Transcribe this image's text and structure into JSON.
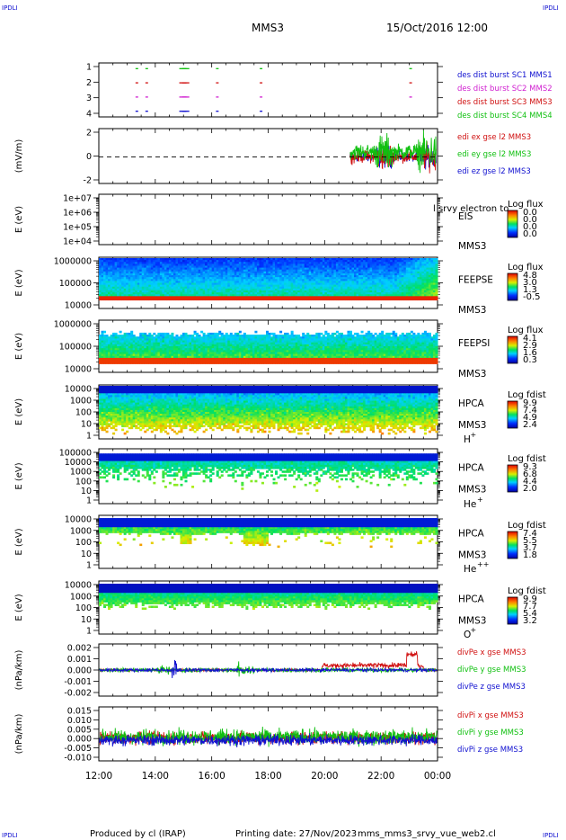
{
  "corner_labels": {
    "top_left": "IPDLI",
    "top_right": "IPDLI",
    "bottom_left": "IPDLI",
    "bottom_right": "IPDLI"
  },
  "header": {
    "spacecraft": "MMS3",
    "datetime": "15/Oct/2016 12:00"
  },
  "footer": {
    "produced_by": "Produced by cl (IRAP)",
    "printing_date": "Printing date: 27/Nov/2023",
    "filename": "mms_mms3_srvy_vue_web2.cl"
  },
  "colors": {
    "blue": "#1010d0",
    "magenta": "#d020d0",
    "red": "#d01010",
    "green": "#10c010"
  },
  "chart_data": [
    {
      "id": "dist-burst",
      "type": "scatter",
      "ylim": [
        0.6,
        4.4
      ],
      "yticks": [
        "1",
        "2",
        "3",
        "4"
      ],
      "legend": [
        {
          "text": "des dist burst SC1 MMS1",
          "color": "#1010d0"
        },
        {
          "text": "des dist burst SC2 MMS2",
          "color": "#d020d0"
        },
        {
          "text": "des dist burst SC3 MMS3",
          "color": "#d01010"
        },
        {
          "text": "des dist burst SC4 MMS4",
          "color": "#10c010"
        }
      ],
      "series": [
        {
          "name": "des dist burst SC4 MMS4",
          "level": 4,
          "color": "#10c010",
          "x": [
            13.3,
            13.65,
            14.85,
            14.95,
            16.15,
            17.7,
            23.0
          ]
        },
        {
          "name": "des dist burst SC3 MMS3",
          "level": 3,
          "color": "#d01010",
          "x": [
            13.3,
            13.65,
            14.85,
            14.95,
            16.15,
            17.7,
            23.0
          ]
        },
        {
          "name": "des dist burst SC2 MMS2",
          "level": 2,
          "color": "#d020d0",
          "x": [
            13.3,
            13.65,
            14.85,
            14.95,
            16.15,
            17.7,
            23.0
          ]
        },
        {
          "name": "des dist burst SC1 MMS1",
          "level": 1,
          "color": "#1010d0",
          "x": [
            13.3,
            13.65,
            14.85,
            14.95,
            16.15,
            17.7
          ]
        }
      ]
    },
    {
      "id": "edi",
      "type": "line",
      "ylabel": "(mV/m)",
      "ylim": [
        -3.2,
        3.4
      ],
      "yticks": [
        "2",
        "0",
        "-2"
      ],
      "legend": [
        {
          "text": "edi ex gse l2 MMS3",
          "color": "#d01010"
        },
        {
          "text": "edi ey gse l2 MMS3",
          "color": "#10c010"
        },
        {
          "text": "edi ez gse l2 MMS3",
          "color": "#1010d0"
        }
      ],
      "data_start_hour": 20.9
    },
    {
      "id": "eis",
      "type": "heatmap",
      "ylabel": "E (eV)",
      "yticks": [
        "1e+07",
        "1e+06",
        "1e+05",
        "1e+04"
      ],
      "instrument": "EIS",
      "overlay_text": "l srvy electron to",
      "spacecraft": "MMS3",
      "colorbar_title": "Log flux",
      "colorbar_ticks": [
        "0.0",
        "0.0",
        "0.0",
        "0.0"
      ]
    },
    {
      "id": "feeps-e",
      "type": "heatmap",
      "ylabel": "E (eV)",
      "yticks": [
        "1000000",
        "100000",
        "10000"
      ],
      "instrument": "FEEPSE",
      "spacecraft": "MMS3",
      "colorbar_title": "Log flux",
      "colorbar_ticks": [
        "4.8",
        "3.0",
        "1.3",
        "-0.5"
      ]
    },
    {
      "id": "feeps-i",
      "type": "heatmap",
      "ylabel": "E (eV)",
      "yticks": [
        "1000000",
        "100000",
        "10000"
      ],
      "instrument": "FEEPSI",
      "spacecraft": "MMS3",
      "colorbar_title": "Log flux",
      "colorbar_ticks": [
        "4.1",
        "2.9",
        "1.6",
        "0.3"
      ]
    },
    {
      "id": "hpca-h",
      "type": "heatmap",
      "ylabel": "E (eV)",
      "yticks": [
        "10000",
        "1000",
        "100",
        "10",
        "1"
      ],
      "instrument": "HPCA",
      "spacecraft": "MMS3",
      "species": "H",
      "species_sup": "+",
      "colorbar_title": "Log fdist",
      "colorbar_ticks": [
        "9.9",
        "7.4",
        "4.9",
        "2.4"
      ]
    },
    {
      "id": "hpca-he",
      "type": "heatmap",
      "ylabel": "E (eV)",
      "yticks": [
        "100000",
        "10000",
        "1000",
        "100",
        "10",
        "1"
      ],
      "instrument": "HPCA",
      "spacecraft": "MMS3",
      "species": "He",
      "species_sup": "+",
      "colorbar_title": "Log fdist",
      "colorbar_ticks": [
        "9.3",
        "6.8",
        "4.4",
        "2.0"
      ]
    },
    {
      "id": "hpca-hepp",
      "type": "heatmap",
      "ylabel": "E (eV)",
      "yticks": [
        "10000",
        "1000",
        "100",
        "10",
        "1"
      ],
      "instrument": "HPCA",
      "spacecraft": "MMS3",
      "species": "He",
      "species_sup": "++",
      "colorbar_title": "Log fdist",
      "colorbar_ticks": [
        "7.4",
        "5.5",
        "3.7",
        "1.8"
      ]
    },
    {
      "id": "hpca-o",
      "type": "heatmap",
      "ylabel": "E (eV)",
      "yticks": [
        "10000",
        "1000",
        "100",
        "10",
        "1"
      ],
      "instrument": "HPCA",
      "spacecraft": "MMS3",
      "species": "O",
      "species_sup": "+",
      "colorbar_title": "Log fdist",
      "colorbar_ticks": [
        "9.9",
        "7.7",
        "5.4",
        "3.2"
      ]
    },
    {
      "id": "divpe",
      "type": "line",
      "ylabel": "(nPa/km)",
      "ylim": [
        -0.0026,
        0.0026
      ],
      "yticks": [
        "0.002",
        "0.001",
        "0.000",
        "-0.001",
        "-0.002"
      ],
      "legend": [
        {
          "text": "divPe x gse MMS3",
          "color": "#d01010"
        },
        {
          "text": "divPe y gse MMS3",
          "color": "#10c010"
        },
        {
          "text": "divPe z gse MMS3",
          "color": "#1010d0"
        }
      ]
    },
    {
      "id": "divpi",
      "type": "line",
      "ylabel": "(nPa/km)",
      "ylim": [
        -0.0125,
        0.0175
      ],
      "yticks": [
        "0.015",
        "0.010",
        "0.005",
        "0.000",
        "-0.005",
        "-0.010"
      ],
      "legend": [
        {
          "text": "divPi x gse MMS3",
          "color": "#d01010"
        },
        {
          "text": "divPi y gse MMS3",
          "color": "#10c010"
        },
        {
          "text": "divPi z gse MMS3",
          "color": "#1010d0"
        }
      ]
    }
  ],
  "xaxis": {
    "ticks": [
      "12:00",
      "14:00",
      "16:00",
      "18:00",
      "20:00",
      "22:00",
      "00:00"
    ],
    "range_hours": [
      12,
      24
    ]
  }
}
